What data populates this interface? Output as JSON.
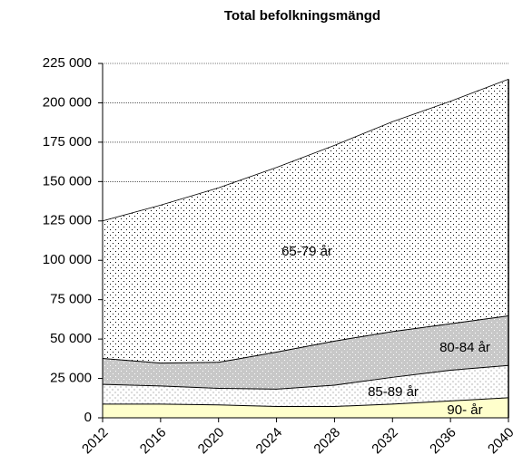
{
  "chart_data": {
    "type": "stacked-area",
    "title": "Total befolkningsmängd",
    "x": [
      2012,
      2016,
      2020,
      2024,
      2028,
      2032,
      2036,
      2040
    ],
    "series": [
      {
        "name": "90- år",
        "color": "#ffffcc",
        "values": [
          9000,
          9000,
          8500,
          7500,
          7500,
          9000,
          11000,
          13000
        ]
      },
      {
        "name": "85-89 år",
        "color": "#ffffff",
        "values": [
          12500,
          11500,
          10500,
          11000,
          13500,
          17000,
          19500,
          20500
        ]
      },
      {
        "name": "80-84 år",
        "color": "#c8c8c8",
        "values": [
          16500,
          14500,
          16500,
          23500,
          28000,
          29000,
          29500,
          31500
        ]
      },
      {
        "name": "65-79 år",
        "color": "#ffffff",
        "values": [
          87000,
          100000,
          110500,
          117000,
          124000,
          133000,
          141000,
          150000
        ]
      }
    ],
    "xlim": [
      2012,
      2040
    ],
    "xticks": [
      2012,
      2016,
      2020,
      2024,
      2028,
      2032,
      2036,
      2040
    ],
    "ylim": [
      0,
      225000
    ],
    "yticks": [
      0,
      {
        "value": 25000,
        "label": "25 000"
      },
      {
        "value": 50000,
        "label": "50 000"
      },
      {
        "value": 75000,
        "label": "75 000"
      },
      {
        "value": 100000,
        "label": "100 000"
      },
      {
        "value": 125000,
        "label": "125 000"
      },
      {
        "value": 150000,
        "label": "150 000"
      },
      {
        "value": 175000,
        "label": "175 000"
      },
      {
        "value": 200000,
        "label": "200 000"
      },
      {
        "value": 225000,
        "label": "225 000"
      }
    ],
    "grid": true
  }
}
